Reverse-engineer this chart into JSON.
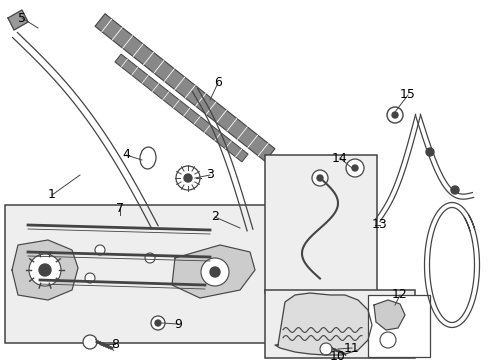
{
  "bg_color": "#ffffff",
  "lc": "#444444",
  "figsize": [
    4.89,
    3.6
  ],
  "dpi": 100,
  "font_size": 9
}
